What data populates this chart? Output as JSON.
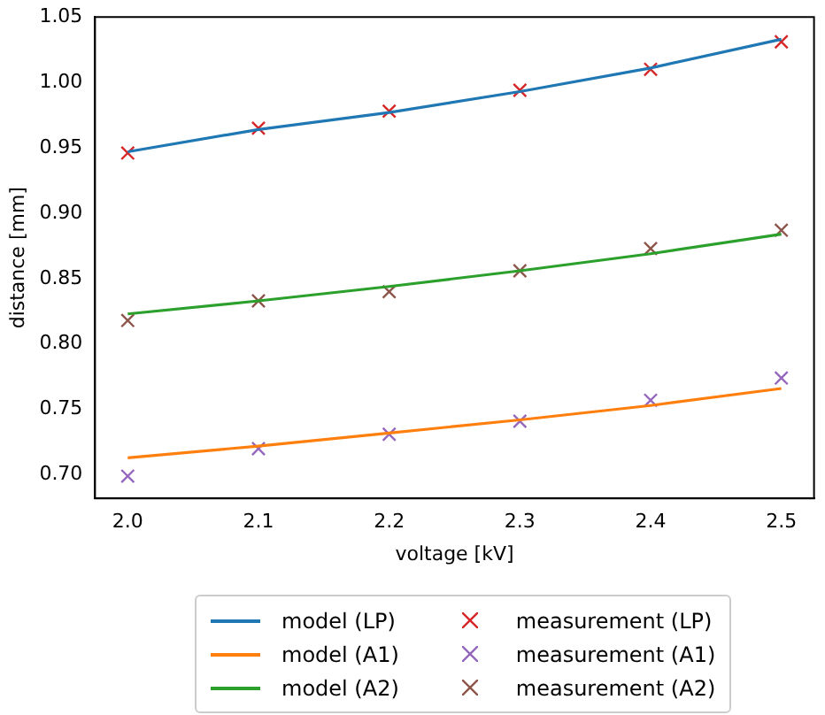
{
  "chart_data": {
    "type": "line",
    "xlabel": "voltage [kV]",
    "ylabel": "distance [mm]",
    "x": [
      2.0,
      2.1,
      2.2,
      2.3,
      2.4,
      2.5
    ],
    "series": [
      {
        "name": "model (LP)",
        "color": "#1f77b4",
        "marker": "none",
        "values": [
          0.947,
          0.964,
          0.977,
          0.993,
          1.011,
          1.033
        ]
      },
      {
        "name": "model (A1)",
        "color": "#ff7f0e",
        "marker": "none",
        "values": [
          0.713,
          0.722,
          0.732,
          0.742,
          0.753,
          0.766
        ]
      },
      {
        "name": "model (A2)",
        "color": "#2ca02c",
        "marker": "none",
        "values": [
          0.823,
          0.833,
          0.844,
          0.856,
          0.869,
          0.884
        ]
      },
      {
        "name": "measurement (LP)",
        "type": "scatter",
        "color": "#d62728",
        "marker": "cross",
        "values": [
          0.946,
          0.965,
          0.978,
          0.994,
          1.01,
          1.031
        ]
      },
      {
        "name": "measurement (A1)",
        "type": "scatter",
        "color": "#9467bd",
        "marker": "cross",
        "values": [
          0.699,
          0.72,
          0.731,
          0.741,
          0.757,
          0.774
        ]
      },
      {
        "name": "measurement (A2)",
        "type": "scatter",
        "color": "#8c564b",
        "marker": "cross",
        "values": [
          0.818,
          0.833,
          0.84,
          0.856,
          0.873,
          0.887
        ]
      }
    ],
    "xlim": [
      1.975,
      2.525
    ],
    "xticks": [
      {
        "value": 2.0,
        "label": "2.0"
      },
      {
        "value": 2.1,
        "label": "2.1"
      },
      {
        "value": 2.2,
        "label": "2.2"
      },
      {
        "value": 2.3,
        "label": "2.3"
      },
      {
        "value": 2.4,
        "label": "2.4"
      },
      {
        "value": 2.5,
        "label": "2.5"
      }
    ],
    "ylim": [
      0.682,
      1.05
    ],
    "yticks": [
      {
        "value": 0.7,
        "label": "0.70"
      },
      {
        "value": 0.75,
        "label": "0.75"
      },
      {
        "value": 0.8,
        "label": "0.80"
      },
      {
        "value": 0.85,
        "label": "0.85"
      },
      {
        "value": 0.9,
        "label": "0.90"
      },
      {
        "value": 0.95,
        "label": "0.95"
      },
      {
        "value": 1.0,
        "label": "1.00"
      },
      {
        "value": 1.05,
        "label": "1.05"
      }
    ],
    "grid": false,
    "legend": "bottom"
  }
}
